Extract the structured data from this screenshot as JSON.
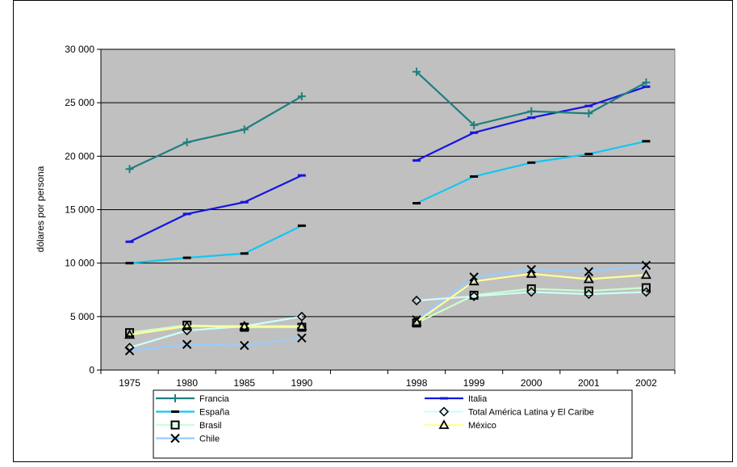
{
  "chart_data": {
    "type": "line",
    "title": "",
    "xlabel": "",
    "ylabel": "dólares por persona",
    "categories": [
      "1975",
      "1980",
      "1985",
      "1990",
      "",
      "1998",
      "1999",
      "2000",
      "2001",
      "2002"
    ],
    "ylim": [
      0,
      30000
    ],
    "yticks": [
      {
        "value": 0,
        "label": "0"
      },
      {
        "value": 5000,
        "label": "5 000"
      },
      {
        "value": 10000,
        "label": "10 000"
      },
      {
        "value": 15000,
        "label": "15 000"
      },
      {
        "value": 20000,
        "label": "20 000"
      },
      {
        "value": 25000,
        "label": "25 000"
      },
      {
        "value": 30000,
        "label": "30 000"
      }
    ],
    "grid": "horizontal",
    "legend_position": "bottom",
    "plot_background": "#c0c0c0",
    "series": [
      {
        "name": "Francia",
        "color": "#1f7f7f",
        "marker": "plus",
        "values": [
          18800,
          21300,
          22500,
          25600,
          null,
          27900,
          22900,
          24200,
          24000,
          26900
        ]
      },
      {
        "name": "Italia",
        "color": "#1515e0",
        "marker": "dash",
        "values": [
          12000,
          14600,
          15700,
          18200,
          null,
          19600,
          22200,
          23600,
          24700,
          26500
        ]
      },
      {
        "name": "España",
        "color": "#13c6f0",
        "marker": "dash",
        "values": [
          10000,
          10500,
          10900,
          13500,
          null,
          15600,
          18100,
          19400,
          20200,
          21400
        ]
      },
      {
        "name": "Total América Latina y El Caribe",
        "color": "#ccffff",
        "marker": "diamond",
        "values": [
          2100,
          3700,
          4100,
          5000,
          null,
          6500,
          6900,
          7300,
          7100,
          7300
        ]
      },
      {
        "name": "Brasil",
        "color": "#ccffcc",
        "marker": "square",
        "values": [
          3500,
          4200,
          4000,
          4000,
          null,
          4400,
          7000,
          7600,
          7400,
          7700
        ]
      },
      {
        "name": "México",
        "color": "#ffff99",
        "marker": "triangle",
        "values": [
          3300,
          4100,
          4100,
          4100,
          null,
          4500,
          8300,
          9000,
          8500,
          8900
        ]
      },
      {
        "name": "Chile",
        "color": "#99ccff",
        "marker": "x",
        "values": [
          1800,
          2400,
          2300,
          3000,
          null,
          4700,
          8700,
          9400,
          9200,
          9800
        ]
      }
    ]
  }
}
